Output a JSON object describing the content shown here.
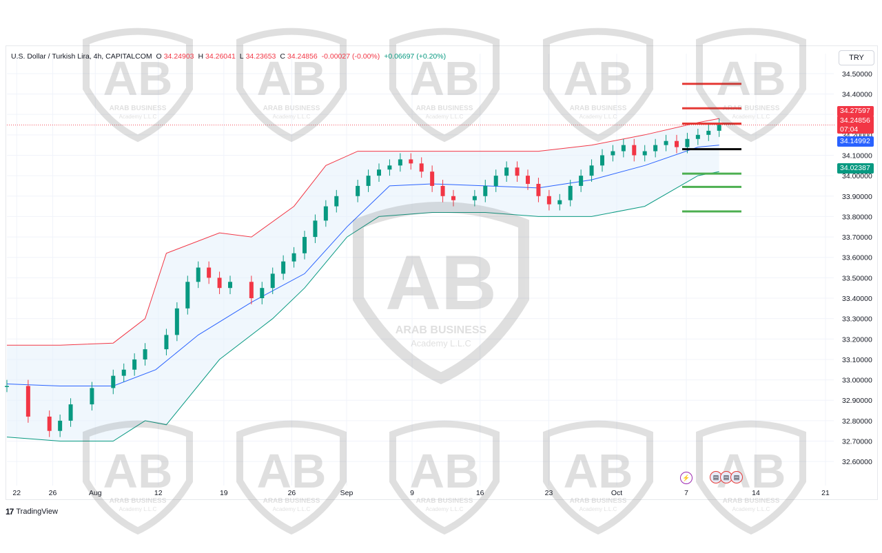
{
  "header": {
    "symbol": "U.S. Dollar / Turkish Lira, 4h, CAPITALCOM",
    "open_label": "O",
    "open": "34.24903",
    "high_label": "H",
    "high": "34.26041",
    "low_label": "L",
    "low": "34.23653",
    "close_label": "C",
    "close": "34.24856",
    "change": "-0.00027 (-0.00%)",
    "indicator_change": "+0.06697 (+0.20%)"
  },
  "currency_button": "TRY",
  "price_tags": {
    "red_top": "34.27597",
    "current": "34.24856",
    "countdown": "07:04",
    "blue": "34.14992",
    "green": "34.02387"
  },
  "brand": {
    "name": "TradingView",
    "mark": "17"
  },
  "watermark": {
    "line1": "ARAB BUSINESS",
    "line2": "Academy L.L.C",
    "logo": "AB"
  },
  "colors": {
    "up": "#089981",
    "down": "#f23645",
    "upper_band": "#f23645",
    "basis": "#2962ff",
    "lower_band": "#089981",
    "band_fill": "#e3f0fb",
    "support": "#4caf50",
    "resistance": "#e53935",
    "pivot": "#000000"
  },
  "event_icons": [
    "lightning-icon",
    "us-flag-icon",
    "us-flag-icon",
    "us-flag-icon"
  ],
  "chart_data": {
    "type": "candlestick",
    "title": "U.S. Dollar / Turkish Lira, 4h, CAPITALCOM",
    "x_ticks": [
      "22",
      "26",
      "Aug",
      "12",
      "19",
      "26",
      "Sep",
      "9",
      "16",
      "23",
      "Oct",
      "7",
      "14",
      "21"
    ],
    "y_ticks": [
      "34.50000",
      "34.40000",
      "34.30000",
      "34.20000",
      "34.10000",
      "34.00000",
      "33.90000",
      "33.80000",
      "33.70000",
      "33.60000",
      "33.50000",
      "33.40000",
      "33.30000",
      "33.20000",
      "33.10000",
      "33.00000",
      "32.90000",
      "32.80000",
      "32.70000",
      "32.60000"
    ],
    "ylim": [
      32.55,
      34.53
    ],
    "grid": true,
    "series": [
      {
        "name": "Close",
        "points": [
          [
            0,
            32.97
          ],
          [
            2,
            32.82
          ],
          [
            4,
            32.75
          ],
          [
            5,
            32.8
          ],
          [
            6,
            32.88
          ],
          [
            8,
            32.96
          ],
          [
            10,
            33.02
          ],
          [
            11,
            33.05
          ],
          [
            12,
            33.1
          ],
          [
            13,
            33.15
          ],
          [
            15,
            33.22
          ],
          [
            16,
            33.35
          ],
          [
            17,
            33.48
          ],
          [
            18,
            33.55
          ],
          [
            19,
            33.5
          ],
          [
            20,
            33.45
          ],
          [
            21,
            33.48
          ],
          [
            23,
            33.4
          ],
          [
            24,
            33.45
          ],
          [
            25,
            33.52
          ],
          [
            26,
            33.58
          ],
          [
            27,
            33.62
          ],
          [
            28,
            33.7
          ],
          [
            29,
            33.78
          ],
          [
            30,
            33.85
          ],
          [
            31,
            33.9
          ],
          [
            33,
            33.95
          ],
          [
            34,
            34.0
          ],
          [
            35,
            34.03
          ],
          [
            36,
            34.05
          ],
          [
            37,
            34.08
          ],
          [
            38,
            34.06
          ],
          [
            39,
            34.02
          ],
          [
            40,
            33.95
          ],
          [
            41,
            33.9
          ],
          [
            42,
            33.88
          ],
          [
            44,
            33.9
          ],
          [
            45,
            33.95
          ],
          [
            46,
            34.0
          ],
          [
            47,
            34.04
          ],
          [
            48,
            34.0
          ],
          [
            49,
            33.96
          ],
          [
            50,
            33.9
          ],
          [
            51,
            33.86
          ],
          [
            52,
            33.88
          ],
          [
            53,
            33.95
          ],
          [
            54,
            34.0
          ],
          [
            55,
            34.05
          ],
          [
            56,
            34.1
          ],
          [
            57,
            34.12
          ],
          [
            58,
            34.15
          ],
          [
            59,
            34.1
          ],
          [
            60,
            34.12
          ],
          [
            61,
            34.15
          ],
          [
            62,
            34.17
          ],
          [
            63,
            34.14
          ],
          [
            64,
            34.18
          ],
          [
            65,
            34.2
          ],
          [
            66,
            34.22
          ],
          [
            67,
            34.25
          ]
        ]
      },
      {
        "name": "Basis",
        "points": [
          [
            0,
            32.98
          ],
          [
            5,
            32.97
          ],
          [
            10,
            32.97
          ],
          [
            14,
            33.05
          ],
          [
            18,
            33.22
          ],
          [
            23,
            33.38
          ],
          [
            28,
            33.52
          ],
          [
            32,
            33.75
          ],
          [
            36,
            33.95
          ],
          [
            40,
            33.96
          ],
          [
            45,
            33.95
          ],
          [
            50,
            33.94
          ],
          [
            55,
            33.98
          ],
          [
            60,
            34.05
          ],
          [
            65,
            34.14
          ],
          [
            67,
            34.15
          ]
        ]
      },
      {
        "name": "Upper",
        "points": [
          [
            0,
            33.17
          ],
          [
            5,
            33.17
          ],
          [
            10,
            33.18
          ],
          [
            13,
            33.3
          ],
          [
            15,
            33.62
          ],
          [
            20,
            33.72
          ],
          [
            23,
            33.7
          ],
          [
            27,
            33.85
          ],
          [
            30,
            34.05
          ],
          [
            33,
            34.12
          ],
          [
            40,
            34.12
          ],
          [
            45,
            34.12
          ],
          [
            50,
            34.12
          ],
          [
            55,
            34.15
          ],
          [
            60,
            34.2
          ],
          [
            65,
            34.26
          ],
          [
            67,
            34.28
          ]
        ]
      },
      {
        "name": "Lower",
        "points": [
          [
            0,
            32.72
          ],
          [
            5,
            32.7
          ],
          [
            10,
            32.7
          ],
          [
            13,
            32.8
          ],
          [
            15,
            32.78
          ],
          [
            20,
            33.1
          ],
          [
            25,
            33.3
          ],
          [
            28,
            33.45
          ],
          [
            32,
            33.7
          ],
          [
            35,
            33.8
          ],
          [
            40,
            33.82
          ],
          [
            45,
            33.82
          ],
          [
            50,
            33.8
          ],
          [
            55,
            33.8
          ],
          [
            60,
            33.85
          ],
          [
            65,
            34.0
          ],
          [
            67,
            34.02
          ]
        ]
      }
    ],
    "levels": [
      {
        "value": 34.45,
        "kind": "resistance"
      },
      {
        "value": 34.33,
        "kind": "resistance"
      },
      {
        "value": 34.255,
        "kind": "resistance"
      },
      {
        "value": 34.13,
        "kind": "pivot"
      },
      {
        "value": 34.01,
        "kind": "support"
      },
      {
        "value": 33.945,
        "kind": "support"
      },
      {
        "value": 33.825,
        "kind": "support"
      }
    ]
  }
}
